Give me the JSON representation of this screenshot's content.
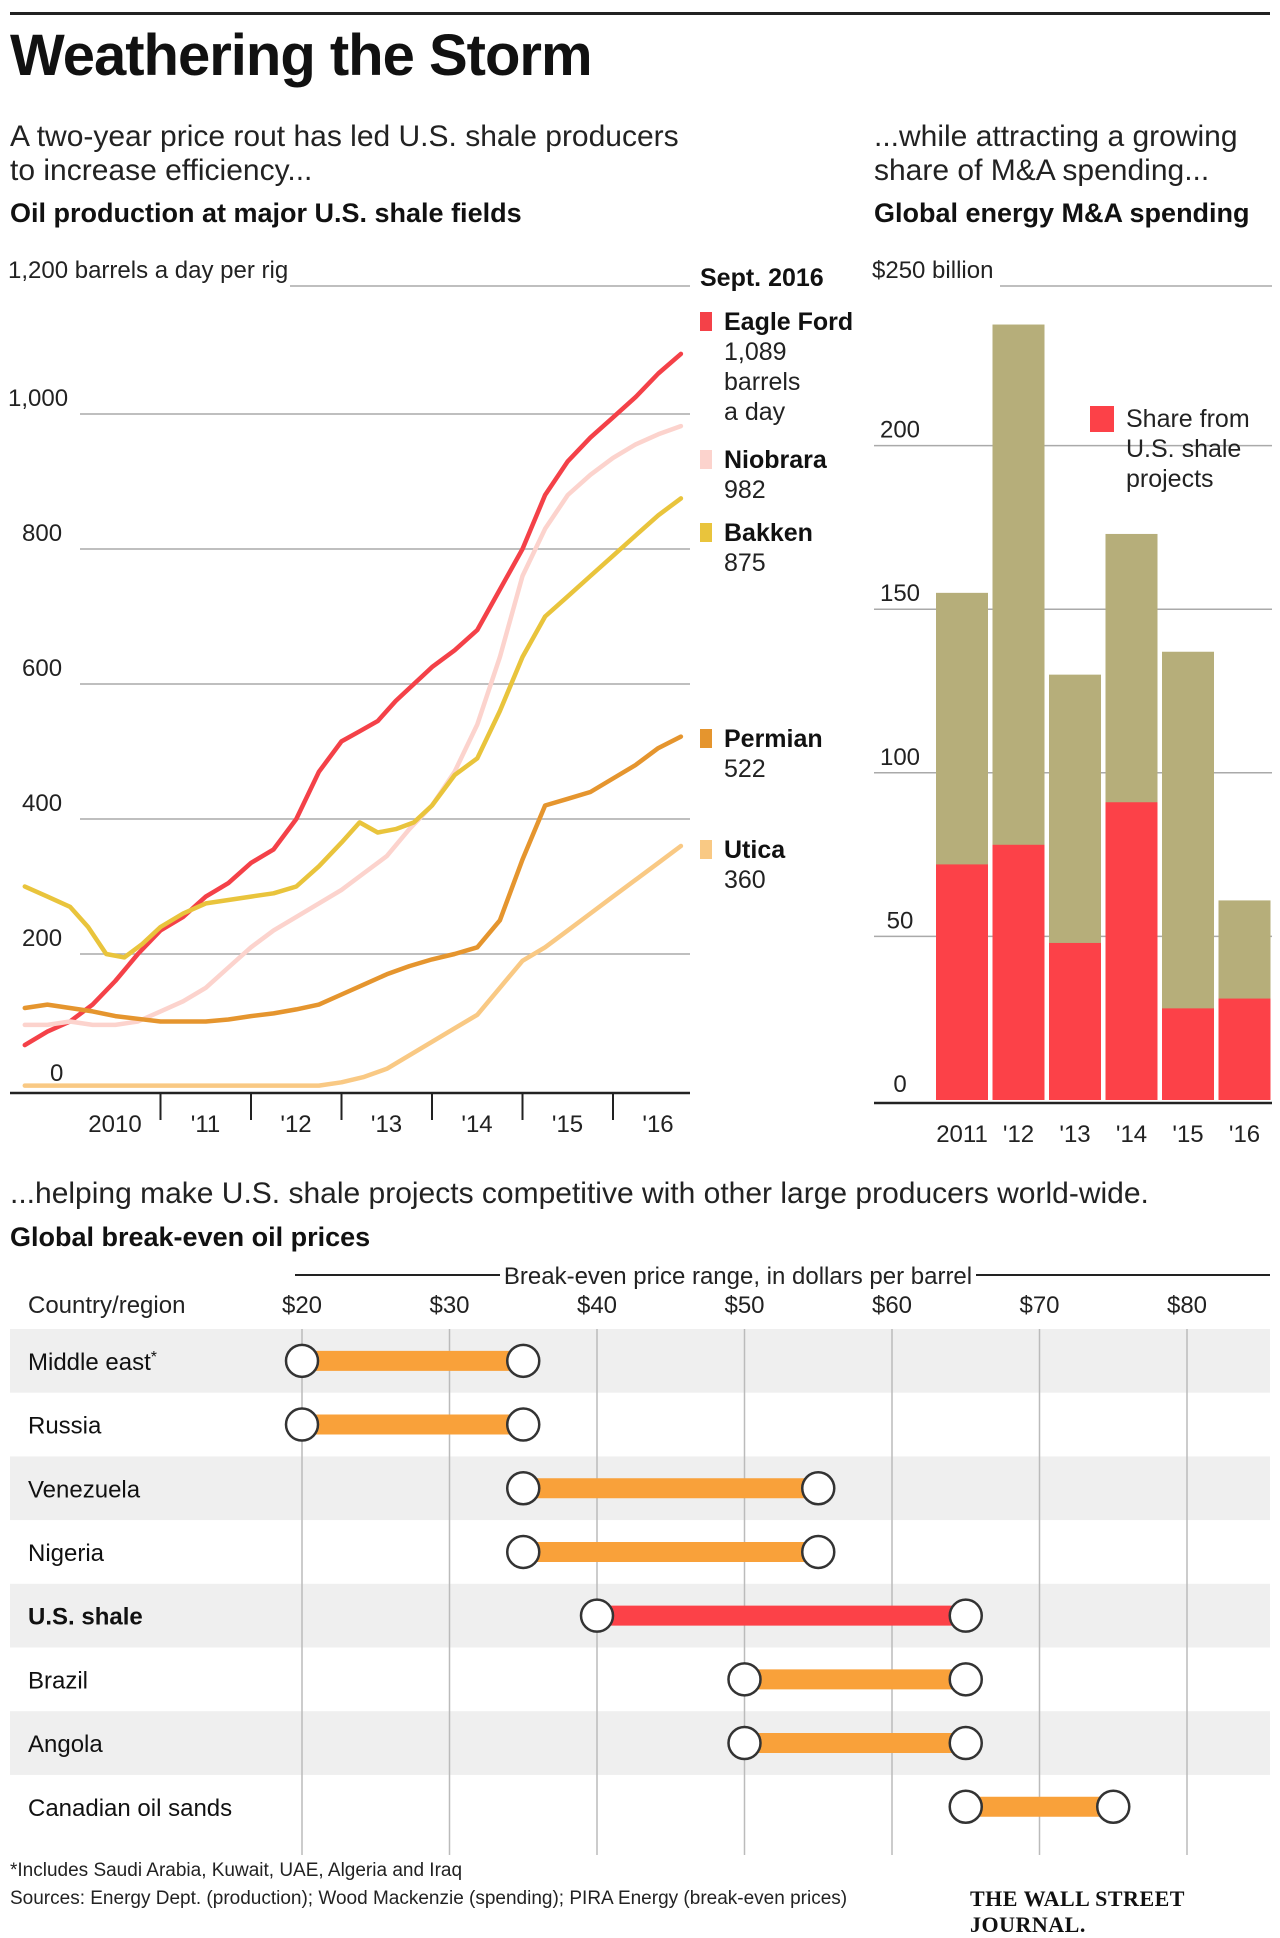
{
  "title": "Weathering the Storm",
  "left_intro": "A two-year price rout has led U.S. shale producers to increase efficiency...",
  "left_subtitle": "Oil production at major U.S. shale fields",
  "right_intro": "...while attracting a growing share of M&A spending...",
  "right_subtitle": "Global energy M&A spending",
  "bottom_intro": "...helping make U.S. shale projects competitive with other large producers world-wide.",
  "bottom_subtitle": "Global break-even oil prices",
  "footnote": "*Includes Saudi Arabia, Kuwait, UAE, Algeria and Iraq",
  "sources": "Sources: Energy Dept. (production); Wood Mackenzie (spending); PIRA Energy (break-even prices)",
  "masthead": "THE WALL STREET JOURNAL.",
  "colors": {
    "eagle_ford": "#f44148",
    "niobrara": "#fcd3cd",
    "bakken": "#e9c43c",
    "permian": "#e5952e",
    "utica": "#f9c984",
    "ma_total": "#b6ae7a",
    "ma_shale": "#fc4148",
    "range_bar": "#f9a13a",
    "range_bar_highlight": "#fc4148",
    "row_band": "#efefef"
  },
  "chart_data": [
    {
      "type": "line",
      "title": "Oil production at major U.S. shale fields",
      "ylabel": "1,200 barrels a day per rig",
      "ylim": [
        0,
        1200
      ],
      "yticks": [
        "0",
        "200",
        "400",
        "600",
        "800",
        "1,000"
      ],
      "xlim": [
        2009.5,
        2016.75
      ],
      "xticks": [
        "2010",
        "'11",
        "'12",
        "'13",
        "'14",
        "'15",
        "'16"
      ],
      "legend_header": "Sept. 2016",
      "series": [
        {
          "name": "Eagle Ford",
          "label_value": "1,089",
          "label_unit": "barrels a day",
          "color_key": "eagle_ford",
          "x": [
            2009.5,
            2009.75,
            2010.0,
            2010.25,
            2010.5,
            2010.75,
            2011.0,
            2011.25,
            2011.5,
            2011.75,
            2012.0,
            2012.25,
            2012.5,
            2012.75,
            2013.0,
            2013.2,
            2013.4,
            2013.6,
            2013.8,
            2014.0,
            2014.25,
            2014.5,
            2014.75,
            2015.0,
            2015.25,
            2015.5,
            2015.75,
            2016.0,
            2016.25,
            2016.5,
            2016.75
          ],
          "values": [
            65,
            85,
            100,
            125,
            160,
            200,
            235,
            255,
            285,
            305,
            335,
            355,
            400,
            470,
            515,
            530,
            545,
            575,
            600,
            625,
            650,
            680,
            740,
            800,
            880,
            930,
            965,
            995,
            1025,
            1060,
            1089
          ]
        },
        {
          "name": "Niobrara",
          "label_value": "982",
          "color_key": "niobrara",
          "x": [
            2009.5,
            2009.75,
            2010.0,
            2010.25,
            2010.5,
            2010.75,
            2011.0,
            2011.25,
            2011.5,
            2011.75,
            2012.0,
            2012.25,
            2012.5,
            2012.75,
            2013.0,
            2013.25,
            2013.5,
            2013.75,
            2014.0,
            2014.25,
            2014.5,
            2014.75,
            2015.0,
            2015.25,
            2015.5,
            2015.75,
            2016.0,
            2016.25,
            2016.5,
            2016.75
          ],
          "values": [
            95,
            95,
            100,
            95,
            95,
            100,
            115,
            130,
            150,
            180,
            210,
            235,
            255,
            275,
            295,
            320,
            345,
            385,
            420,
            470,
            540,
            640,
            760,
            830,
            880,
            910,
            935,
            955,
            970,
            982
          ]
        },
        {
          "name": "Bakken",
          "label_value": "875",
          "color_key": "bakken",
          "x": [
            2009.5,
            2009.75,
            2010.0,
            2010.2,
            2010.4,
            2010.6,
            2010.8,
            2011.0,
            2011.25,
            2011.5,
            2011.75,
            2012.0,
            2012.25,
            2012.5,
            2012.75,
            2013.0,
            2013.2,
            2013.4,
            2013.6,
            2013.8,
            2014.0,
            2014.25,
            2014.5,
            2014.75,
            2015.0,
            2015.25,
            2015.5,
            2015.75,
            2016.0,
            2016.25,
            2016.5,
            2016.75
          ],
          "values": [
            300,
            285,
            270,
            240,
            200,
            195,
            215,
            240,
            260,
            275,
            280,
            285,
            290,
            300,
            330,
            365,
            395,
            380,
            385,
            395,
            420,
            465,
            490,
            560,
            640,
            700,
            730,
            760,
            790,
            820,
            850,
            875
          ]
        },
        {
          "name": "Permian",
          "label_value": "522",
          "color_key": "permian",
          "x": [
            2009.5,
            2009.75,
            2010.0,
            2010.25,
            2010.5,
            2010.75,
            2011.0,
            2011.25,
            2011.5,
            2011.75,
            2012.0,
            2012.25,
            2012.5,
            2012.75,
            2013.0,
            2013.25,
            2013.5,
            2013.75,
            2014.0,
            2014.25,
            2014.5,
            2014.75,
            2015.0,
            2015.25,
            2015.5,
            2015.75,
            2016.0,
            2016.25,
            2016.5,
            2016.75
          ],
          "values": [
            120,
            125,
            120,
            115,
            108,
            104,
            100,
            100,
            100,
            103,
            108,
            112,
            118,
            125,
            140,
            155,
            170,
            182,
            192,
            200,
            210,
            250,
            340,
            420,
            430,
            440,
            460,
            480,
            505,
            522
          ]
        },
        {
          "name": "Utica",
          "label_value": "360",
          "color_key": "utica",
          "x": [
            2009.5,
            2010.0,
            2010.5,
            2011.0,
            2011.5,
            2012.0,
            2012.5,
            2012.75,
            2013.0,
            2013.25,
            2013.5,
            2013.75,
            2014.0,
            2014.25,
            2014.5,
            2014.75,
            2015.0,
            2015.25,
            2015.5,
            2015.75,
            2016.0,
            2016.25,
            2016.5,
            2016.75
          ],
          "values": [
            5,
            5,
            5,
            5,
            5,
            5,
            5,
            5,
            10,
            18,
            30,
            50,
            70,
            90,
            110,
            150,
            190,
            210,
            235,
            260,
            285,
            310,
            335,
            360
          ]
        }
      ]
    },
    {
      "type": "bar",
      "title": "Global energy M&A spending",
      "ylabel": "$250 billion",
      "ylim": [
        0,
        250
      ],
      "yticks": [
        "0",
        "50",
        "100",
        "150",
        "200"
      ],
      "categories": [
        "2011",
        "'12",
        "'13",
        "'14",
        "'15",
        "'16"
      ],
      "series": [
        {
          "name": "",
          "values": [
            155,
            237,
            130,
            173,
            137,
            61
          ],
          "color_key": "ma_total"
        },
        {
          "name": "Share from U.S. shale projects",
          "values": [
            72,
            78,
            48,
            91,
            28,
            31
          ],
          "color_key": "ma_shale"
        }
      ]
    },
    {
      "type": "range",
      "title": "Global break-even oil prices",
      "xlabel": "Break-even price range, in dollars per barrel",
      "column_header": "Country/region",
      "xlim": [
        20,
        85
      ],
      "xticks": [
        "$20",
        "$30",
        "$40",
        "$50",
        "$60",
        "$70",
        "$80"
      ],
      "rows": [
        {
          "label": "Middle east",
          "marker": "*",
          "low": 20,
          "high": 35
        },
        {
          "label": "Russia",
          "low": 20,
          "high": 35
        },
        {
          "label": "Venezuela",
          "low": 35,
          "high": 55
        },
        {
          "label": "Nigeria",
          "low": 35,
          "high": 55
        },
        {
          "label": "U.S. shale",
          "low": 40,
          "high": 65,
          "highlight": true
        },
        {
          "label": "Brazil",
          "low": 50,
          "high": 65
        },
        {
          "label": "Angola",
          "low": 50,
          "high": 65
        },
        {
          "label": "Canadian oil sands",
          "low": 65,
          "high": 75
        }
      ]
    }
  ]
}
